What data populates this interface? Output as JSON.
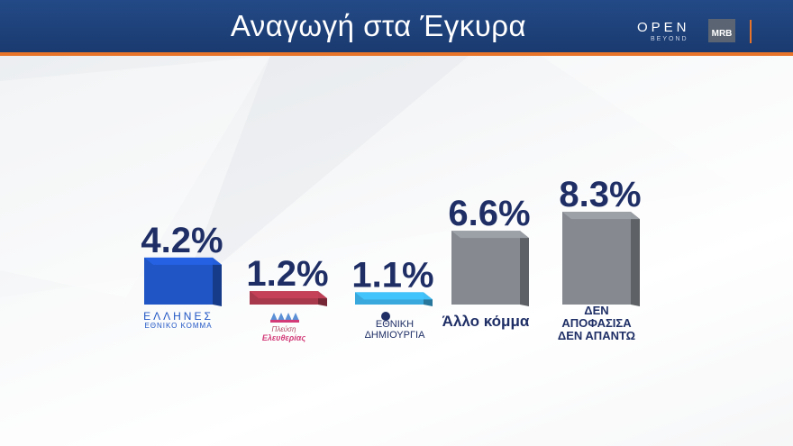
{
  "header": {
    "title": "Αναγωγή στα Έγκυρα",
    "brand_open": "OPEN",
    "brand_beyond": "BEYOND",
    "brand_mrb": "MRB"
  },
  "colors": {
    "header_bg": "#1f437e",
    "accent": "#e8742a",
    "value_text": "#1f2f66"
  },
  "chart_data": {
    "type": "bar",
    "categories": [
      "ΕΛΛΗΝΕΣ ΕΘΝΙΚΟ ΚΟΜΜΑ",
      "Πλεύση Ελευθερίας",
      "ΕΘΝΙΚΗ ΔΗΜΙΟΥΡΓΙΑ",
      "Άλλο κόμμα",
      "ΔΕΝ ΑΠΟΦΑΣΙΣΑ ΔΕΝ ΑΠΑΝΤΩ"
    ],
    "values": [
      4.2,
      1.2,
      1.1,
      6.6,
      8.3
    ],
    "value_labels": [
      "4.2%",
      "1.2%",
      "1.1%",
      "6.6%",
      "8.3%"
    ],
    "colors": [
      "#1f55c4",
      "#a8384c",
      "#39a9dd",
      "#868a90",
      "#868a90"
    ],
    "title": "Αναγωγή στα Έγκυρα",
    "xlabel": "",
    "ylabel": "",
    "grid": false,
    "legend": "none"
  }
}
